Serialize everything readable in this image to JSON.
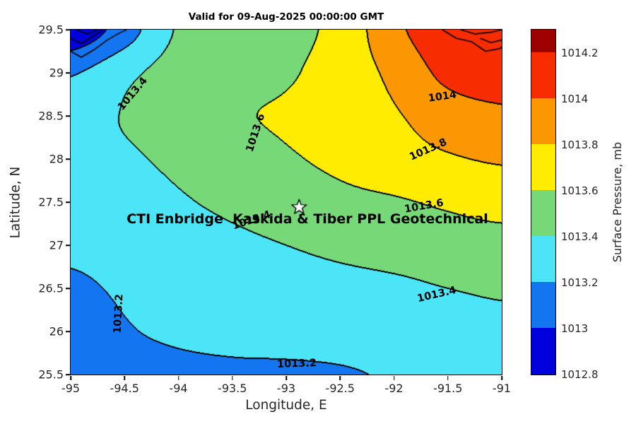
{
  "title": "Valid for 09-Aug-2025 00:00:00 GMT",
  "overlay_label": "CTI Enbridge  Kaskida & Tiber PPL Geotechnical",
  "axes": {
    "xlabel": "Longitude, E",
    "ylabel": "Latitude, N",
    "x_ticks": [
      "-95",
      "-94.5",
      "-94",
      "-93.5",
      "-93",
      "-92.5",
      "-92",
      "-91.5",
      "-91"
    ],
    "y_ticks": [
      "29.5",
      "29",
      "28.5",
      "28",
      "27.5",
      "27",
      "26.5",
      "26",
      "25.5"
    ]
  },
  "colorbar": {
    "label": "Surface Pressure, mb",
    "min": 1012.8,
    "max": 1014.3,
    "ticks": [
      {
        "value": 1014.2,
        "label": "1014.2"
      },
      {
        "value": 1014.0,
        "label": "1014"
      },
      {
        "value": 1013.8,
        "label": "1013.8"
      },
      {
        "value": 1013.6,
        "label": "1013.6"
      },
      {
        "value": 1013.4,
        "label": "1013.4"
      },
      {
        "value": 1013.2,
        "label": "1013.2"
      },
      {
        "value": 1013.0,
        "label": "1013"
      },
      {
        "value": 1012.8,
        "label": "1012.8"
      }
    ],
    "segments": [
      {
        "from": 1012.8,
        "to": 1013.0,
        "color": "#0000DC"
      },
      {
        "from": 1013.0,
        "to": 1013.2,
        "color": "#1475F0"
      },
      {
        "from": 1013.2,
        "to": 1013.4,
        "color": "#4CE4F7"
      },
      {
        "from": 1013.4,
        "to": 1013.6,
        "color": "#77D877"
      },
      {
        "from": 1013.6,
        "to": 1013.8,
        "color": "#FFEC00"
      },
      {
        "from": 1013.8,
        "to": 1014.0,
        "color": "#FB9702"
      },
      {
        "from": 1014.0,
        "to": 1014.2,
        "color": "#F72C00"
      },
      {
        "from": 1014.2,
        "to": 1014.3,
        "color": "#9E0000"
      }
    ]
  },
  "chart_data": {
    "type": "heatmap",
    "subtype": "filled-contour",
    "title": "Valid for 09-Aug-2025 00:00:00 GMT",
    "xlabel": "Longitude, E",
    "ylabel": "Latitude, N",
    "zlabel": "Surface Pressure, mb",
    "xlim": [
      -95,
      -91
    ],
    "ylim": [
      25.5,
      29.5
    ],
    "levels": {
      "min": 1012.8,
      "step": 0.2,
      "max": 1014.3
    },
    "colors": [
      "#0000DC",
      "#1475F0",
      "#4CE4F7",
      "#77D877",
      "#FFEC00",
      "#FB9702",
      "#F72C00",
      "#9E0000"
    ],
    "grid": {
      "lons": [
        -95,
        -94.5,
        -94,
        -93.5,
        -93,
        -92.5,
        -92,
        -91.5,
        -91
      ],
      "lats": [
        25.5,
        26,
        26.5,
        27,
        27.5,
        28,
        28.5,
        29,
        29.5
      ],
      "values": [
        [
          1013.05,
          1013.1,
          1013.14,
          1013.16,
          1013.16,
          1013.18,
          1013.22,
          1013.26,
          1013.3
        ],
        [
          1013.08,
          1013.18,
          1013.24,
          1013.27,
          1013.29,
          1013.3,
          1013.32,
          1013.34,
          1013.36
        ],
        [
          1013.16,
          1013.23,
          1013.28,
          1013.31,
          1013.33,
          1013.35,
          1013.37,
          1013.4,
          1013.42
        ],
        [
          1013.24,
          1013.28,
          1013.32,
          1013.36,
          1013.4,
          1013.44,
          1013.47,
          1013.5,
          1013.52
        ],
        [
          1013.27,
          1013.32,
          1013.38,
          1013.44,
          1013.5,
          1013.55,
          1013.58,
          1013.63,
          1013.68
        ],
        [
          1013.3,
          1013.37,
          1013.44,
          1013.52,
          1013.58,
          1013.64,
          1013.72,
          1013.78,
          1013.82
        ],
        [
          1013.32,
          1013.41,
          1013.5,
          1013.58,
          1013.62,
          1013.68,
          1013.78,
          1013.9,
          1013.96
        ],
        [
          1013.18,
          1013.35,
          1013.48,
          1013.54,
          1013.58,
          1013.68,
          1013.85,
          1014.05,
          1014.1
        ],
        [
          1012.85,
          1013.1,
          1013.42,
          1013.5,
          1013.55,
          1013.66,
          1013.95,
          1014.12,
          1014.15
        ]
      ]
    },
    "contour_labels": [
      {
        "text": "1013.4",
        "lon": -94.42,
        "lat": 28.75,
        "angle": -50
      },
      {
        "text": "1013.6",
        "lon": -93.28,
        "lat": 28.3,
        "angle": -72
      },
      {
        "text": "1014",
        "lon": -91.55,
        "lat": 28.72,
        "angle": -8
      },
      {
        "text": "1013.8",
        "lon": -91.68,
        "lat": 28.1,
        "angle": -24
      },
      {
        "text": "1013.4",
        "lon": -93.32,
        "lat": 27.28,
        "angle": -18
      },
      {
        "text": "1013.6",
        "lon": -91.72,
        "lat": 27.45,
        "angle": -10
      },
      {
        "text": "1013.4",
        "lon": -91.6,
        "lat": 26.42,
        "angle": -13
      },
      {
        "text": "1013.2",
        "lon": -94.55,
        "lat": 26.2,
        "angle": -87
      },
      {
        "text": "1013.2",
        "lon": -92.9,
        "lat": 25.62,
        "angle": -2
      }
    ],
    "marker": {
      "type": "star",
      "lon": -92.88,
      "lat": 27.44,
      "size": 11
    },
    "overlay_text": {
      "lon": -92.8,
      "lat": 27.3
    },
    "coastlines": [
      [
        [
          -95,
          29.25
        ],
        [
          -94.9,
          29.18
        ],
        [
          -94.78,
          29.27
        ],
        [
          -94.66,
          29.38
        ],
        [
          -94.55,
          29.46
        ],
        [
          -94.48,
          29.5
        ]
      ],
      [
        [
          -95,
          29.4
        ],
        [
          -94.9,
          29.34
        ],
        [
          -94.8,
          29.42
        ],
        [
          -94.7,
          29.5
        ]
      ],
      [
        [
          -94.95,
          29.5
        ],
        [
          -94.85,
          29.45
        ],
        [
          -94.75,
          29.5
        ]
      ],
      [
        [
          -91.55,
          29.5
        ],
        [
          -91.42,
          29.4
        ],
        [
          -91.28,
          29.36
        ],
        [
          -91.15,
          29.25
        ],
        [
          -91.02,
          29.28
        ],
        [
          -91,
          29.3
        ]
      ],
      [
        [
          -91.38,
          29.5
        ],
        [
          -91.25,
          29.45
        ],
        [
          -91.1,
          29.47
        ],
        [
          -91,
          29.5
        ]
      ],
      [
        [
          -91.2,
          29.4
        ],
        [
          -91.1,
          29.35
        ],
        [
          -91,
          29.38
        ]
      ]
    ]
  }
}
